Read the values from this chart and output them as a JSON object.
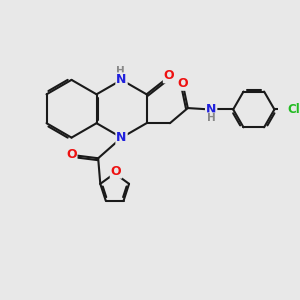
{
  "background_color": "#e8e8e8",
  "bond_color": "#1a1a1a",
  "atom_colors": {
    "N": "#2020dd",
    "O": "#ee1111",
    "Cl": "#22bb22",
    "H": "#888888",
    "C": "#1a1a1a"
  },
  "figsize": [
    3.0,
    3.0
  ],
  "dpi": 100,
  "xlim": [
    0,
    10
  ],
  "ylim": [
    0,
    10
  ]
}
